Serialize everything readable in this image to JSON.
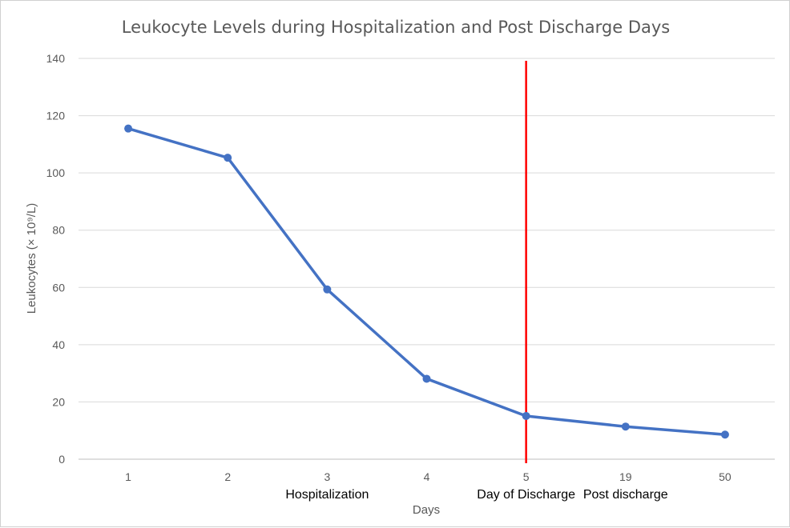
{
  "chart_data": {
    "type": "line",
    "title": "Leukocyte Levels during Hospitalization and Post Discharge Days",
    "xlabel": "Days",
    "ylabel": "Leukocytes (× 10⁹/L)",
    "categories": [
      "1",
      "2",
      "3",
      "4",
      "5",
      "19",
      "50"
    ],
    "values": [
      115.5,
      105.3,
      59.3,
      28.1,
      15.1,
      11.4,
      8.6
    ],
    "ylim": [
      0,
      140
    ],
    "yticks": [
      0,
      20,
      40,
      60,
      80,
      100,
      120,
      140
    ],
    "grid": true,
    "series_color": "#4472C4",
    "marker_line": {
      "category": "5",
      "color": "#FF0000"
    },
    "annotations": [
      {
        "text": "Hospitalization",
        "category": "3"
      },
      {
        "text": "Day of Discharge",
        "category": "5"
      },
      {
        "text": "Post discharge",
        "category": "19"
      }
    ]
  }
}
